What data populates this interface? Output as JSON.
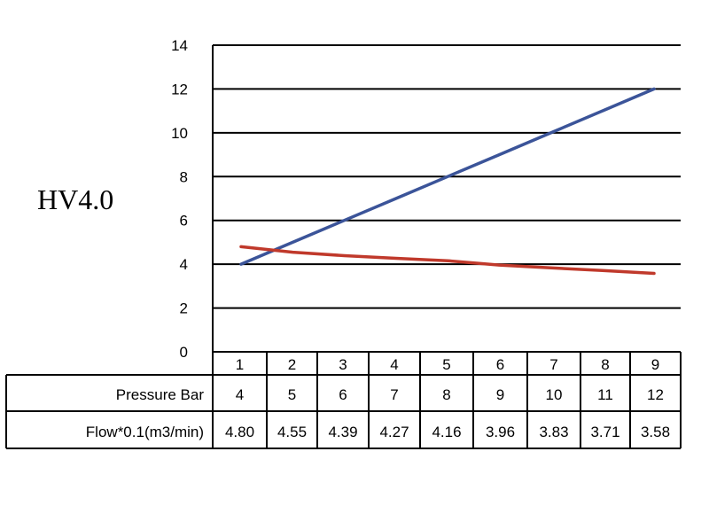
{
  "chart_data": {
    "type": "line",
    "title": "HV4.0",
    "x": [
      1,
      2,
      3,
      4,
      5,
      6,
      7,
      8,
      9
    ],
    "ylim": [
      0,
      14
    ],
    "yticks": [
      0,
      2,
      4,
      6,
      8,
      10,
      12,
      14
    ],
    "grid": true,
    "series": [
      {
        "color": "#3b5499",
        "values": [
          4,
          5,
          6,
          7,
          8,
          9,
          10,
          11,
          12
        ]
      },
      {
        "color": "#c0392b",
        "values": [
          4.8,
          4.55,
          4.39,
          4.27,
          4.16,
          3.96,
          3.83,
          3.71,
          3.58
        ]
      }
    ],
    "table": {
      "rows": [
        {
          "label": "Pressure Bar",
          "values": [
            "4",
            "5",
            "6",
            "7",
            "8",
            "9",
            "10",
            "11",
            "12"
          ]
        },
        {
          "label": "Flow*0.1(m3/min)",
          "values": [
            "4.80",
            "4.55",
            "4.39",
            "4.27",
            "4.16",
            "3.96",
            "3.83",
            "3.71",
            "3.58"
          ]
        }
      ]
    }
  }
}
